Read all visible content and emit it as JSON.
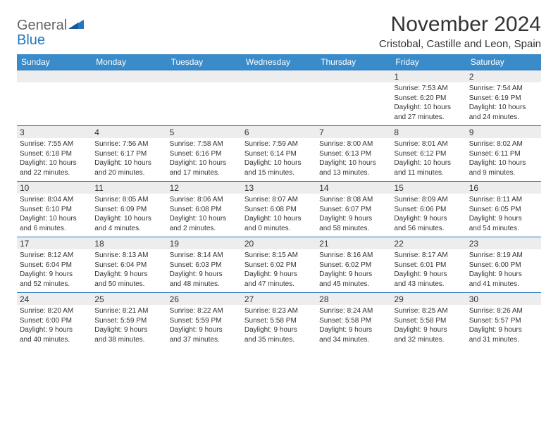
{
  "logo": {
    "word1": "General",
    "word2": "Blue",
    "word1_color": "#666666",
    "word2_color": "#2676bf",
    "shape_color": "#2676bf"
  },
  "title": "November 2024",
  "location": "Cristobal, Castille and Leon, Spain",
  "colors": {
    "header_bg": "#3a8bc9",
    "header_text": "#ffffff",
    "daynum_bg": "#ededed",
    "row_border": "#2676bf",
    "text": "#333333",
    "background": "#ffffff"
  },
  "typography": {
    "title_fontsize": 30,
    "location_fontsize": 15,
    "dayheader_fontsize": 12,
    "daynum_fontsize": 12,
    "cell_fontsize": 10
  },
  "day_names": [
    "Sunday",
    "Monday",
    "Tuesday",
    "Wednesday",
    "Thursday",
    "Friday",
    "Saturday"
  ],
  "weeks": [
    [
      {
        "num": "",
        "sunrise": "",
        "sunset": "",
        "daylight1": "",
        "daylight2": ""
      },
      {
        "num": "",
        "sunrise": "",
        "sunset": "",
        "daylight1": "",
        "daylight2": ""
      },
      {
        "num": "",
        "sunrise": "",
        "sunset": "",
        "daylight1": "",
        "daylight2": ""
      },
      {
        "num": "",
        "sunrise": "",
        "sunset": "",
        "daylight1": "",
        "daylight2": ""
      },
      {
        "num": "",
        "sunrise": "",
        "sunset": "",
        "daylight1": "",
        "daylight2": ""
      },
      {
        "num": "1",
        "sunrise": "Sunrise: 7:53 AM",
        "sunset": "Sunset: 6:20 PM",
        "daylight1": "Daylight: 10 hours",
        "daylight2": "and 27 minutes."
      },
      {
        "num": "2",
        "sunrise": "Sunrise: 7:54 AM",
        "sunset": "Sunset: 6:19 PM",
        "daylight1": "Daylight: 10 hours",
        "daylight2": "and 24 minutes."
      }
    ],
    [
      {
        "num": "3",
        "sunrise": "Sunrise: 7:55 AM",
        "sunset": "Sunset: 6:18 PM",
        "daylight1": "Daylight: 10 hours",
        "daylight2": "and 22 minutes."
      },
      {
        "num": "4",
        "sunrise": "Sunrise: 7:56 AM",
        "sunset": "Sunset: 6:17 PM",
        "daylight1": "Daylight: 10 hours",
        "daylight2": "and 20 minutes."
      },
      {
        "num": "5",
        "sunrise": "Sunrise: 7:58 AM",
        "sunset": "Sunset: 6:16 PM",
        "daylight1": "Daylight: 10 hours",
        "daylight2": "and 17 minutes."
      },
      {
        "num": "6",
        "sunrise": "Sunrise: 7:59 AM",
        "sunset": "Sunset: 6:14 PM",
        "daylight1": "Daylight: 10 hours",
        "daylight2": "and 15 minutes."
      },
      {
        "num": "7",
        "sunrise": "Sunrise: 8:00 AM",
        "sunset": "Sunset: 6:13 PM",
        "daylight1": "Daylight: 10 hours",
        "daylight2": "and 13 minutes."
      },
      {
        "num": "8",
        "sunrise": "Sunrise: 8:01 AM",
        "sunset": "Sunset: 6:12 PM",
        "daylight1": "Daylight: 10 hours",
        "daylight2": "and 11 minutes."
      },
      {
        "num": "9",
        "sunrise": "Sunrise: 8:02 AM",
        "sunset": "Sunset: 6:11 PM",
        "daylight1": "Daylight: 10 hours",
        "daylight2": "and 9 minutes."
      }
    ],
    [
      {
        "num": "10",
        "sunrise": "Sunrise: 8:04 AM",
        "sunset": "Sunset: 6:10 PM",
        "daylight1": "Daylight: 10 hours",
        "daylight2": "and 6 minutes."
      },
      {
        "num": "11",
        "sunrise": "Sunrise: 8:05 AM",
        "sunset": "Sunset: 6:09 PM",
        "daylight1": "Daylight: 10 hours",
        "daylight2": "and 4 minutes."
      },
      {
        "num": "12",
        "sunrise": "Sunrise: 8:06 AM",
        "sunset": "Sunset: 6:08 PM",
        "daylight1": "Daylight: 10 hours",
        "daylight2": "and 2 minutes."
      },
      {
        "num": "13",
        "sunrise": "Sunrise: 8:07 AM",
        "sunset": "Sunset: 6:08 PM",
        "daylight1": "Daylight: 10 hours",
        "daylight2": "and 0 minutes."
      },
      {
        "num": "14",
        "sunrise": "Sunrise: 8:08 AM",
        "sunset": "Sunset: 6:07 PM",
        "daylight1": "Daylight: 9 hours",
        "daylight2": "and 58 minutes."
      },
      {
        "num": "15",
        "sunrise": "Sunrise: 8:09 AM",
        "sunset": "Sunset: 6:06 PM",
        "daylight1": "Daylight: 9 hours",
        "daylight2": "and 56 minutes."
      },
      {
        "num": "16",
        "sunrise": "Sunrise: 8:11 AM",
        "sunset": "Sunset: 6:05 PM",
        "daylight1": "Daylight: 9 hours",
        "daylight2": "and 54 minutes."
      }
    ],
    [
      {
        "num": "17",
        "sunrise": "Sunrise: 8:12 AM",
        "sunset": "Sunset: 6:04 PM",
        "daylight1": "Daylight: 9 hours",
        "daylight2": "and 52 minutes."
      },
      {
        "num": "18",
        "sunrise": "Sunrise: 8:13 AM",
        "sunset": "Sunset: 6:04 PM",
        "daylight1": "Daylight: 9 hours",
        "daylight2": "and 50 minutes."
      },
      {
        "num": "19",
        "sunrise": "Sunrise: 8:14 AM",
        "sunset": "Sunset: 6:03 PM",
        "daylight1": "Daylight: 9 hours",
        "daylight2": "and 48 minutes."
      },
      {
        "num": "20",
        "sunrise": "Sunrise: 8:15 AM",
        "sunset": "Sunset: 6:02 PM",
        "daylight1": "Daylight: 9 hours",
        "daylight2": "and 47 minutes."
      },
      {
        "num": "21",
        "sunrise": "Sunrise: 8:16 AM",
        "sunset": "Sunset: 6:02 PM",
        "daylight1": "Daylight: 9 hours",
        "daylight2": "and 45 minutes."
      },
      {
        "num": "22",
        "sunrise": "Sunrise: 8:17 AM",
        "sunset": "Sunset: 6:01 PM",
        "daylight1": "Daylight: 9 hours",
        "daylight2": "and 43 minutes."
      },
      {
        "num": "23",
        "sunrise": "Sunrise: 8:19 AM",
        "sunset": "Sunset: 6:00 PM",
        "daylight1": "Daylight: 9 hours",
        "daylight2": "and 41 minutes."
      }
    ],
    [
      {
        "num": "24",
        "sunrise": "Sunrise: 8:20 AM",
        "sunset": "Sunset: 6:00 PM",
        "daylight1": "Daylight: 9 hours",
        "daylight2": "and 40 minutes."
      },
      {
        "num": "25",
        "sunrise": "Sunrise: 8:21 AM",
        "sunset": "Sunset: 5:59 PM",
        "daylight1": "Daylight: 9 hours",
        "daylight2": "and 38 minutes."
      },
      {
        "num": "26",
        "sunrise": "Sunrise: 8:22 AM",
        "sunset": "Sunset: 5:59 PM",
        "daylight1": "Daylight: 9 hours",
        "daylight2": "and 37 minutes."
      },
      {
        "num": "27",
        "sunrise": "Sunrise: 8:23 AM",
        "sunset": "Sunset: 5:58 PM",
        "daylight1": "Daylight: 9 hours",
        "daylight2": "and 35 minutes."
      },
      {
        "num": "28",
        "sunrise": "Sunrise: 8:24 AM",
        "sunset": "Sunset: 5:58 PM",
        "daylight1": "Daylight: 9 hours",
        "daylight2": "and 34 minutes."
      },
      {
        "num": "29",
        "sunrise": "Sunrise: 8:25 AM",
        "sunset": "Sunset: 5:58 PM",
        "daylight1": "Daylight: 9 hours",
        "daylight2": "and 32 minutes."
      },
      {
        "num": "30",
        "sunrise": "Sunrise: 8:26 AM",
        "sunset": "Sunset: 5:57 PM",
        "daylight1": "Daylight: 9 hours",
        "daylight2": "and 31 minutes."
      }
    ]
  ]
}
